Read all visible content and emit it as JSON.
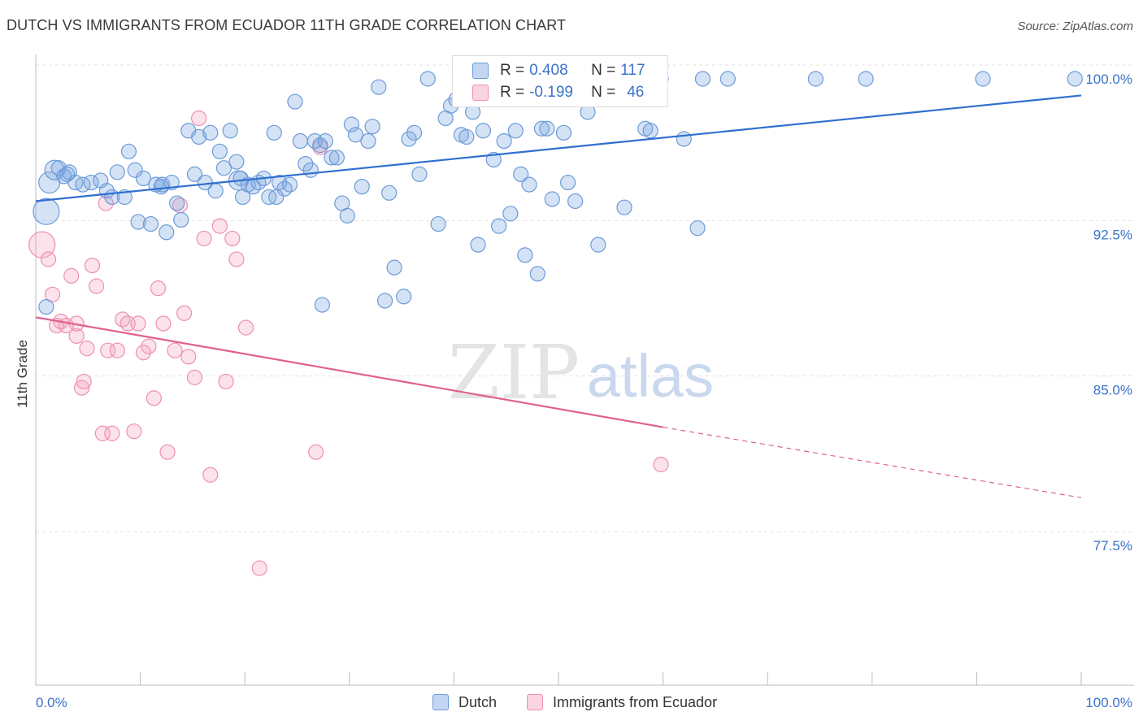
{
  "title": "DUTCH VS IMMIGRANTS FROM ECUADOR 11TH GRADE CORRELATION CHART",
  "source": "Source: ZipAtlas.com",
  "watermark": {
    "zip": "ZIP",
    "atlas": "atlas"
  },
  "legend": {
    "rows": [
      {
        "r_label": "R = ",
        "r_value": "0.408",
        "n_label": "N = ",
        "n_value": "117",
        "color": "#6fa0e0"
      },
      {
        "r_label": "R = ",
        "r_value": "-0.199",
        "n_label": "N = ",
        "n_value": "46",
        "color": "#f08fb0"
      }
    ]
  },
  "bottom_legend": [
    "Dutch",
    "Immigrants from Ecuador"
  ],
  "colors": {
    "dutch_fill": "rgba(120,165,225,0.32)",
    "dutch_stroke": "#6c9bd8",
    "dutch_line": "#2f6fcf",
    "ecu_fill": "rgba(245,160,190,0.30)",
    "ecu_stroke": "#ee8fb2",
    "ecu_line": "#e0608f",
    "tick_text": "#3a73c9",
    "grid": "#e2e2e2"
  },
  "chart_data": {
    "type": "scatter",
    "title": "DUTCH VS IMMIGRANTS FROM ECUADOR 11TH GRADE CORRELATION CHART",
    "xlabel": "",
    "ylabel": "11th Grade",
    "xlim": [
      0,
      100
    ],
    "ylim": [
      71.0,
      102.0
    ],
    "x_tick_labels": [
      "0.0%",
      "100.0%"
    ],
    "y_ticks": [
      77.5,
      85.0,
      92.5,
      100.0
    ],
    "y_tick_labels": [
      "77.5%",
      "85.0%",
      "92.5%",
      "100.0%"
    ],
    "grid": true,
    "series": [
      {
        "name": "Dutch",
        "trend": {
          "x": [
            0,
            100
          ],
          "y": [
            94.1,
            99.2
          ]
        },
        "points": [
          [
            1.0,
            93.6
          ],
          [
            1.3,
            95.0
          ],
          [
            1.8,
            95.6
          ],
          [
            2.2,
            95.7
          ],
          [
            2.7,
            95.3
          ],
          [
            3.2,
            95.5
          ],
          [
            3.8,
            95.0
          ],
          [
            4.5,
            94.9
          ],
          [
            5.3,
            95.0
          ],
          [
            6.2,
            95.1
          ],
          [
            6.8,
            94.6
          ],
          [
            7.3,
            94.3
          ],
          [
            7.8,
            95.5
          ],
          [
            8.5,
            94.3
          ],
          [
            8.9,
            96.5
          ],
          [
            9.5,
            95.6
          ],
          [
            9.8,
            93.1
          ],
          [
            10.3,
            95.2
          ],
          [
            11.0,
            93.0
          ],
          [
            11.5,
            94.9
          ],
          [
            12.0,
            94.8
          ],
          [
            12.5,
            92.6
          ],
          [
            13.0,
            95.0
          ],
          [
            13.5,
            94.0
          ],
          [
            13.9,
            93.2
          ],
          [
            14.6,
            97.5
          ],
          [
            15.2,
            95.4
          ],
          [
            15.6,
            97.2
          ],
          [
            16.2,
            95.0
          ],
          [
            16.7,
            97.4
          ],
          [
            17.2,
            94.6
          ],
          [
            17.6,
            96.5
          ],
          [
            18.0,
            95.7
          ],
          [
            18.6,
            97.5
          ],
          [
            19.2,
            96.0
          ],
          [
            19.6,
            95.2
          ],
          [
            19.8,
            94.3
          ],
          [
            20.3,
            94.9
          ],
          [
            20.8,
            94.8
          ],
          [
            21.3,
            95.0
          ],
          [
            21.8,
            95.2
          ],
          [
            22.3,
            94.3
          ],
          [
            22.8,
            97.4
          ],
          [
            23.3,
            95.0
          ],
          [
            23.8,
            94.7
          ],
          [
            24.3,
            94.9
          ],
          [
            24.8,
            98.9
          ],
          [
            25.3,
            97.0
          ],
          [
            25.8,
            95.9
          ],
          [
            26.3,
            95.6
          ],
          [
            26.7,
            97.0
          ],
          [
            27.2,
            96.8
          ],
          [
            27.7,
            97.0
          ],
          [
            28.3,
            96.2
          ],
          [
            28.8,
            96.2
          ],
          [
            29.3,
            94.0
          ],
          [
            29.8,
            93.4
          ],
          [
            30.2,
            97.8
          ],
          [
            30.6,
            97.3
          ],
          [
            31.2,
            94.8
          ],
          [
            31.8,
            97.0
          ],
          [
            32.2,
            97.7
          ],
          [
            32.8,
            99.6
          ],
          [
            33.8,
            94.5
          ],
          [
            34.3,
            90.9
          ],
          [
            35.2,
            89.5
          ],
          [
            35.7,
            97.1
          ],
          [
            36.2,
            97.4
          ],
          [
            36.7,
            95.4
          ],
          [
            37.5,
            100.0
          ],
          [
            38.5,
            93.0
          ],
          [
            39.2,
            98.1
          ],
          [
            39.7,
            98.7
          ],
          [
            40.2,
            99.0
          ],
          [
            40.7,
            97.3
          ],
          [
            41.2,
            97.2
          ],
          [
            41.8,
            98.4
          ],
          [
            42.3,
            92.0
          ],
          [
            42.8,
            97.5
          ],
          [
            43.8,
            96.1
          ],
          [
            44.3,
            92.9
          ],
          [
            44.8,
            97.0
          ],
          [
            45.4,
            93.5
          ],
          [
            45.9,
            97.5
          ],
          [
            46.4,
            95.4
          ],
          [
            46.8,
            91.5
          ],
          [
            47.2,
            94.9
          ],
          [
            48.0,
            90.6
          ],
          [
            48.4,
            97.6
          ],
          [
            48.9,
            97.6
          ],
          [
            49.4,
            94.2
          ],
          [
            50.5,
            97.4
          ],
          [
            50.9,
            95.0
          ],
          [
            51.6,
            94.1
          ],
          [
            52.2,
            99.1
          ],
          [
            52.8,
            98.4
          ],
          [
            53.8,
            92.0
          ],
          [
            54.2,
            100.0
          ],
          [
            56.3,
            93.8
          ],
          [
            58.3,
            97.6
          ],
          [
            58.8,
            97.5
          ],
          [
            59.8,
            100.0
          ],
          [
            62.0,
            97.1
          ],
          [
            63.3,
            92.8
          ],
          [
            63.8,
            100.0
          ],
          [
            66.2,
            100.0
          ],
          [
            74.6,
            100.0
          ],
          [
            79.4,
            100.0
          ],
          [
            90.6,
            100.0
          ],
          [
            99.4,
            100.0
          ],
          [
            27.4,
            89.1
          ],
          [
            33.4,
            89.3
          ],
          [
            1.0,
            89.0
          ],
          [
            3.0,
            95.4
          ],
          [
            19.4,
            95.1
          ],
          [
            23.0,
            94.3
          ],
          [
            12.1,
            94.9
          ]
        ],
        "sizes": {
          "0": 16,
          "1": 13,
          "2": 12,
          "114": 12
        }
      },
      {
        "name": "Immigrants from Ecuador",
        "trend": {
          "x": [
            0,
            60
          ],
          "y": [
            88.5,
            83.2
          ]
        },
        "trend_extension": {
          "x": [
            60,
            100
          ],
          "y": [
            83.2,
            79.8
          ]
        },
        "points": [
          [
            0.6,
            92.0
          ],
          [
            1.2,
            91.3
          ],
          [
            1.6,
            89.6
          ],
          [
            2.0,
            88.1
          ],
          [
            2.4,
            88.3
          ],
          [
            2.9,
            88.1
          ],
          [
            3.4,
            90.5
          ],
          [
            3.9,
            87.6
          ],
          [
            4.4,
            85.1
          ],
          [
            4.9,
            87.0
          ],
          [
            5.4,
            91.0
          ],
          [
            5.8,
            90.0
          ],
          [
            6.4,
            82.9
          ],
          [
            6.9,
            86.9
          ],
          [
            7.3,
            82.9
          ],
          [
            7.8,
            86.9
          ],
          [
            8.3,
            88.4
          ],
          [
            8.8,
            88.2
          ],
          [
            9.4,
            83.0
          ],
          [
            9.8,
            88.2
          ],
          [
            10.3,
            86.8
          ],
          [
            10.8,
            87.1
          ],
          [
            11.3,
            84.6
          ],
          [
            11.7,
            89.9
          ],
          [
            12.2,
            88.2
          ],
          [
            12.6,
            82.0
          ],
          [
            13.3,
            86.9
          ],
          [
            13.8,
            93.9
          ],
          [
            14.2,
            88.7
          ],
          [
            14.6,
            86.6
          ],
          [
            15.2,
            85.6
          ],
          [
            15.6,
            98.1
          ],
          [
            16.1,
            92.3
          ],
          [
            16.7,
            80.9
          ],
          [
            17.6,
            92.9
          ],
          [
            18.2,
            85.4
          ],
          [
            18.8,
            92.3
          ],
          [
            19.2,
            91.3
          ],
          [
            20.1,
            88.0
          ],
          [
            21.4,
            76.4
          ],
          [
            26.8,
            82.0
          ],
          [
            27.2,
            96.7
          ],
          [
            59.8,
            81.4
          ],
          [
            6.7,
            94.0
          ],
          [
            4.6,
            85.4
          ],
          [
            3.9,
            88.2
          ]
        ],
        "sizes": {
          "0": 16
        }
      }
    ]
  }
}
